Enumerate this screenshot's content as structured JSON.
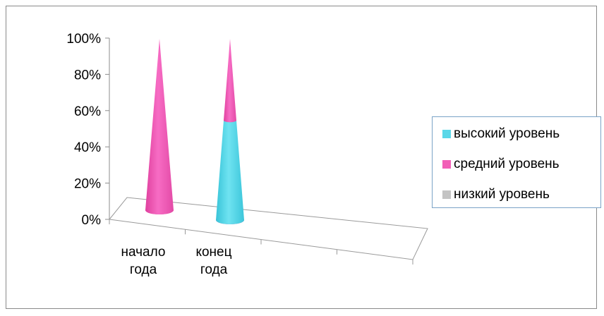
{
  "chart_data": {
    "type": "bar",
    "style": "3d-cone",
    "categories": [
      "начало года",
      "конец года"
    ],
    "category_lines": [
      [
        "начало",
        "года"
      ],
      [
        "конец",
        "года"
      ]
    ],
    "series": [
      {
        "name": "высокий уровень",
        "color": "#5ad7e8",
        "values": [
          0,
          55
        ]
      },
      {
        "name": "средний уровень",
        "color": "#f25fb7",
        "values": [
          100,
          45
        ]
      },
      {
        "name": "низкий уровень",
        "color": "#c4c4c4",
        "values": [
          0,
          0
        ]
      }
    ],
    "y_ticks": [
      "100%",
      "80%",
      "60%",
      "40%",
      "20%",
      "0%"
    ],
    "ylim": [
      0,
      100
    ],
    "grid": false,
    "legend_position": "right"
  }
}
